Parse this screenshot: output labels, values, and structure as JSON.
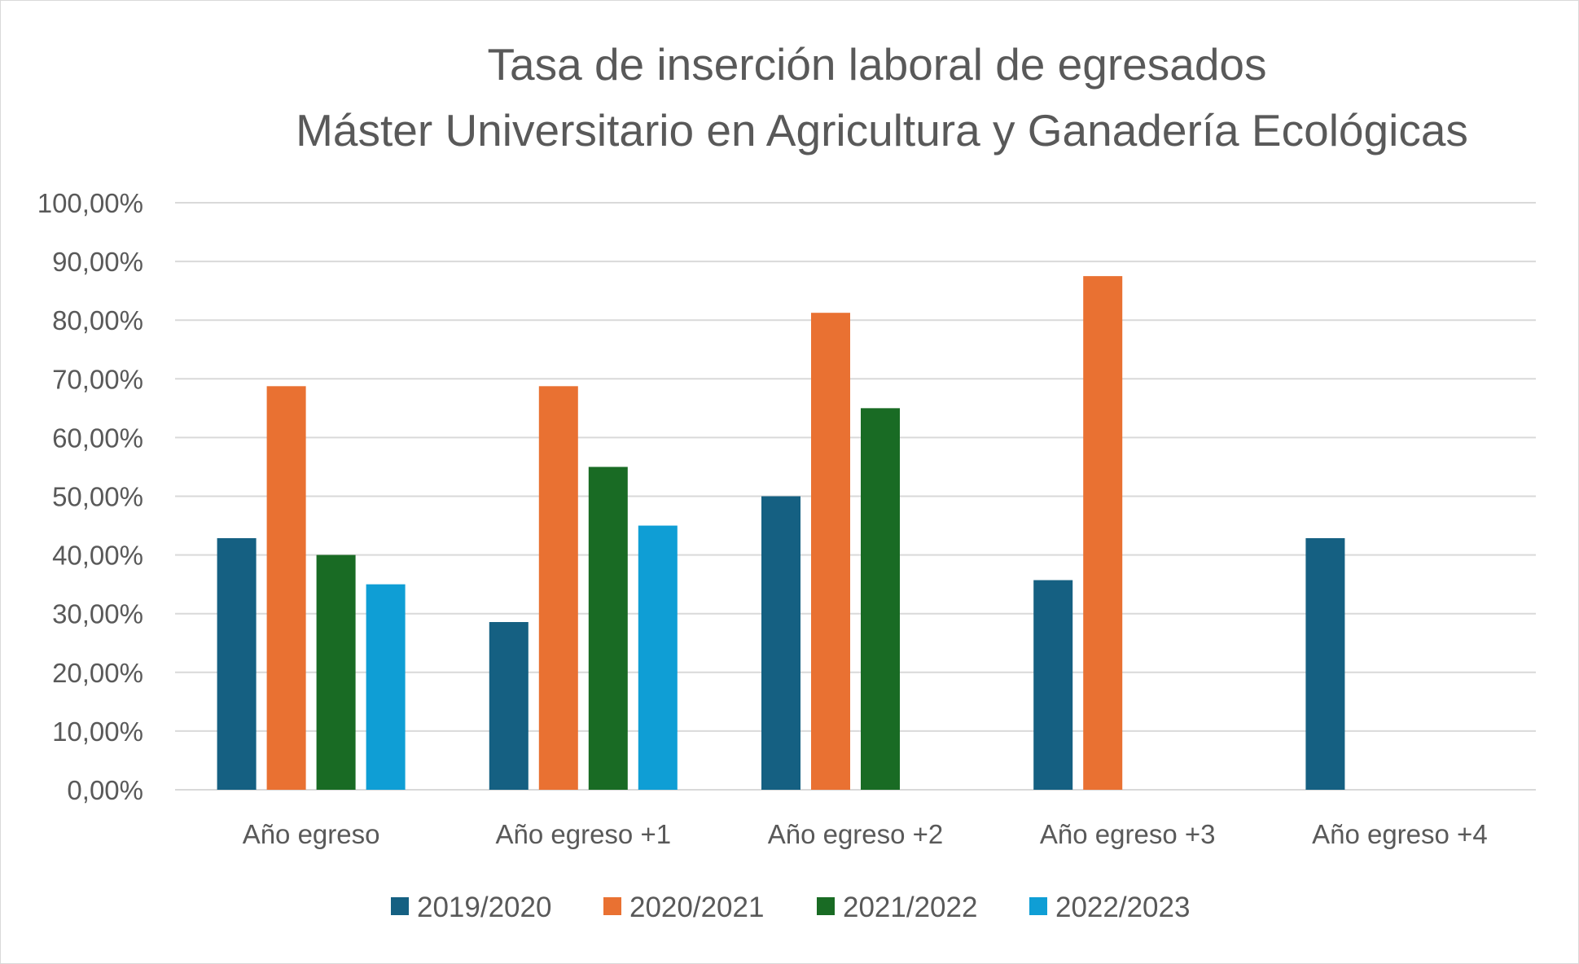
{
  "chart_data": {
    "type": "bar",
    "title": "Tasa de inserción laboral de egresados",
    "subtitle": "Máster Universitario en Agricultura y Ganadería Ecológicas",
    "xlabel": "",
    "ylabel": "",
    "ylim": [
      0,
      100
    ],
    "y_ticks": [
      "0,00%",
      "10,00%",
      "20,00%",
      "30,00%",
      "40,00%",
      "50,00%",
      "60,00%",
      "70,00%",
      "80,00%",
      "90,00%",
      "100,00%"
    ],
    "grid": true,
    "legend_position": "bottom",
    "categories": [
      "Año egreso",
      "Año egreso +1",
      "Año egreso +2",
      "Año egreso +3",
      "Año egreso +4"
    ],
    "series": [
      {
        "name": "2019/2020",
        "color": "#156082",
        "values": [
          42.86,
          28.57,
          50.0,
          35.71,
          42.86
        ]
      },
      {
        "name": "2020/2021",
        "color": "#E97132",
        "values": [
          68.75,
          68.75,
          81.25,
          87.5,
          null
        ]
      },
      {
        "name": "2021/2022",
        "color": "#196B24",
        "values": [
          40.0,
          55.0,
          65.0,
          null,
          null
        ]
      },
      {
        "name": "2022/2023",
        "color": "#0F9ED5",
        "values": [
          35.0,
          45.0,
          null,
          null,
          null
        ]
      }
    ]
  }
}
